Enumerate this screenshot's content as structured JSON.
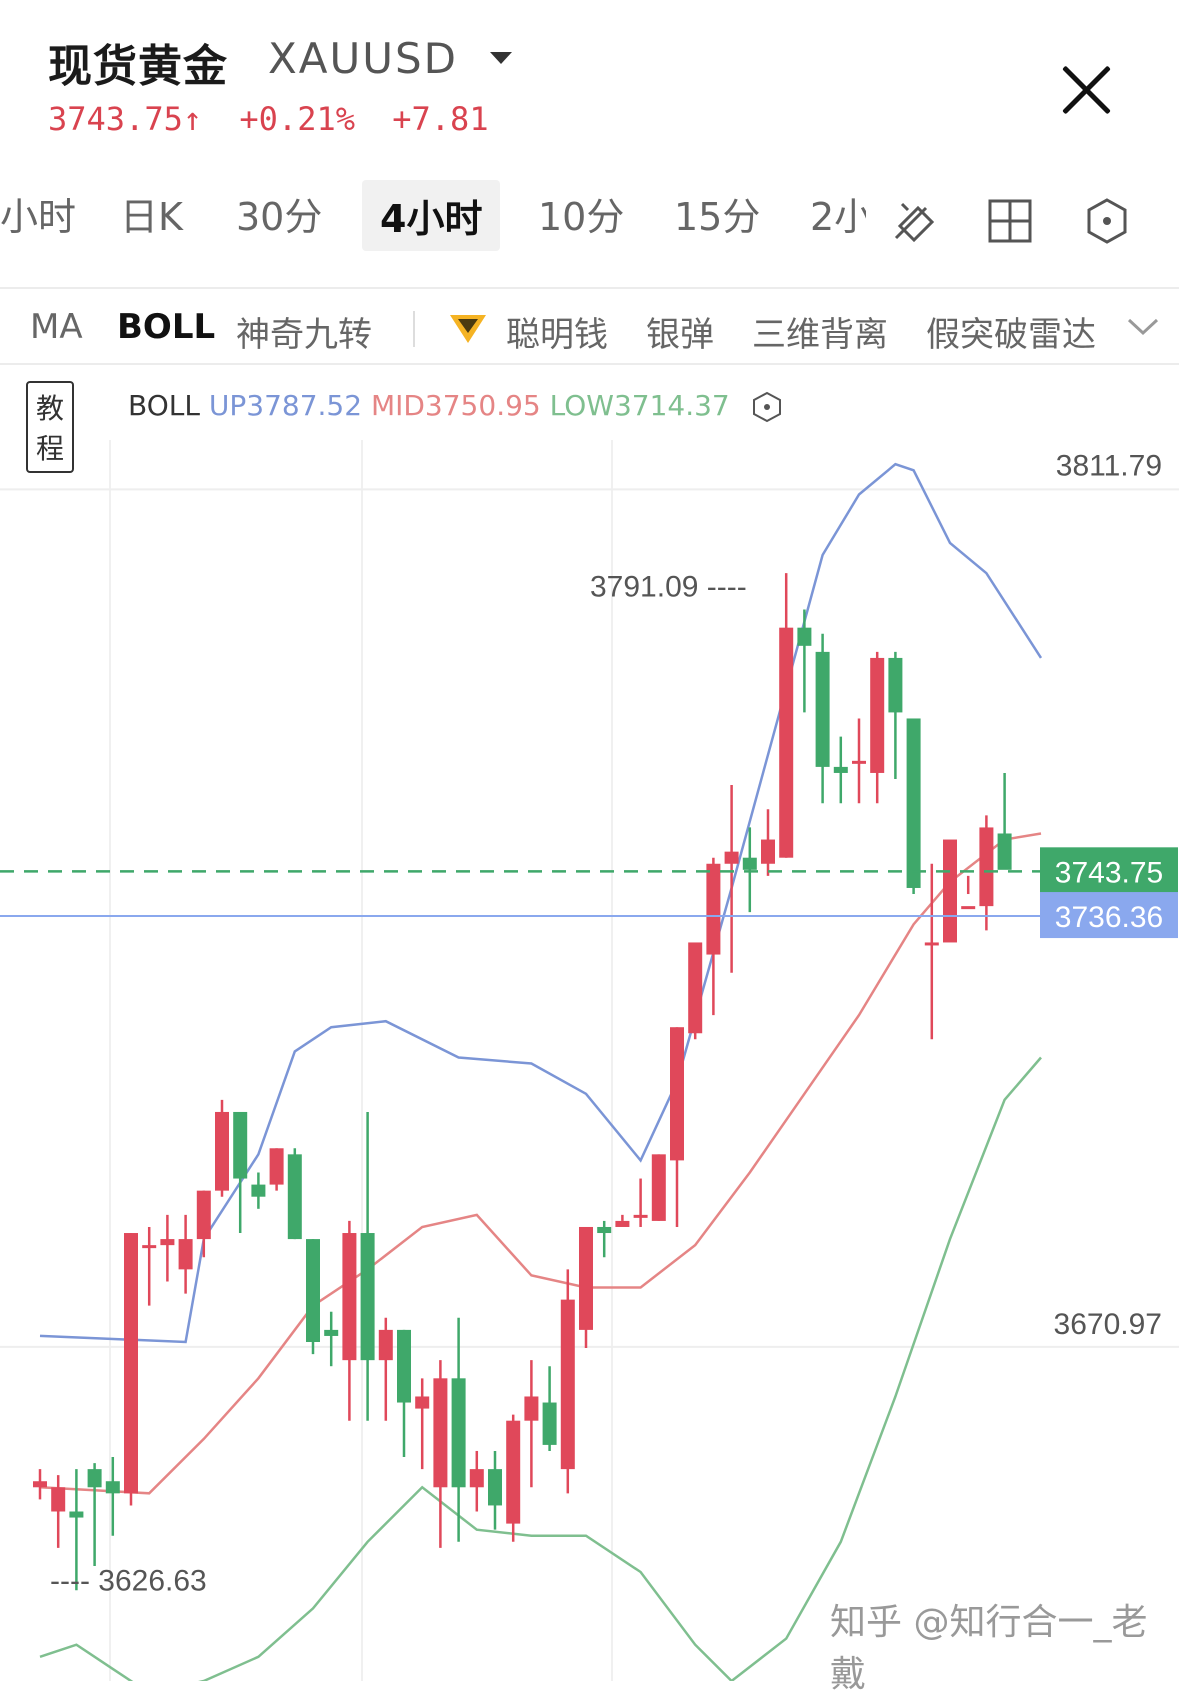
{
  "header": {
    "title": "现货黄金",
    "symbol": "XAUUSD",
    "price": "3743.75↑",
    "change_pct": "+0.21%",
    "change_abs": "+7.81"
  },
  "tabs": [
    {
      "label": "小时"
    },
    {
      "label": "日K"
    },
    {
      "label": "30分"
    },
    {
      "label": "4小时"
    },
    {
      "label": "10分"
    },
    {
      "label": "15分"
    },
    {
      "label": "2小"
    }
  ],
  "tab_active": "4小时",
  "tools": [
    {
      "icon": "drawing-tool-icon"
    },
    {
      "icon": "grid-layout-icon"
    },
    {
      "icon": "settings-hexagon-icon"
    }
  ],
  "indicators": {
    "ma": "MA",
    "boll": "BOLL",
    "items": [
      "神奇九转",
      "聪明钱",
      "银弹",
      "三维背离",
      "假突破雷达"
    ]
  },
  "legend": {
    "tutorial": "教程",
    "name": "BOLL",
    "up": "UP3787.52",
    "mid": "MID3750.95",
    "low": "LOW3714.37"
  },
  "colors": {
    "up": "#e0485a",
    "down": "#3fa86a",
    "upper_band": "#7b95d6",
    "mid_band": "#e58585",
    "lower_band": "#7fbf8f",
    "price_tag": "#3fa86a",
    "cross_tag": "#8aa8ee"
  },
  "watermark": "知乎 @知行合一_老戴",
  "chart_data": {
    "type": "candlestick",
    "ylim": [
      3610,
      3815
    ],
    "price_labels": {
      "top": "3811.79",
      "middle": "3670.97",
      "high_mark": "3791.09",
      "low_mark": "3626.63"
    },
    "current_price": "3743.75",
    "crosshair_price": "3736.36",
    "candles": [
      [
        3642,
        3643,
        3645,
        3640
      ],
      [
        3638,
        3642,
        3644,
        3632
      ],
      [
        3638,
        3637,
        3645,
        3625
      ],
      [
        3645,
        3642,
        3646,
        3629
      ],
      [
        3643,
        3641,
        3647,
        3634
      ],
      [
        3641,
        3684,
        3684,
        3639
      ],
      [
        3682,
        3682,
        3685,
        3672
      ],
      [
        3682,
        3683,
        3687,
        3676
      ],
      [
        3678,
        3683,
        3687,
        3674
      ],
      [
        3683,
        3691,
        3691,
        3680
      ],
      [
        3691,
        3704,
        3706,
        3690
      ],
      [
        3704,
        3693,
        3704,
        3684
      ],
      [
        3692,
        3690,
        3694,
        3688
      ],
      [
        3692,
        3698,
        3698,
        3691
      ],
      [
        3697,
        3683,
        3698,
        3683
      ],
      [
        3683,
        3666,
        3683,
        3664
      ],
      [
        3668,
        3667,
        3671,
        3662
      ],
      [
        3663,
        3684,
        3686,
        3653
      ],
      [
        3684,
        3663,
        3704,
        3653
      ],
      [
        3663,
        3668,
        3670,
        3653
      ],
      [
        3668,
        3656,
        3668,
        3647
      ],
      [
        3655,
        3657,
        3660,
        3645
      ],
      [
        3642,
        3660,
        3663,
        3632
      ],
      [
        3660,
        3642,
        3670,
        3633
      ],
      [
        3642,
        3645,
        3648,
        3638
      ],
      [
        3645,
        3639,
        3648,
        3635
      ],
      [
        3636,
        3653,
        3654,
        3633
      ],
      [
        3653,
        3657,
        3663,
        3642
      ],
      [
        3656,
        3649,
        3662,
        3648
      ],
      [
        3645,
        3673,
        3678,
        3641
      ],
      [
        3668,
        3685,
        3685,
        3665
      ],
      [
        3685,
        3684,
        3686,
        3680
      ],
      [
        3685,
        3686,
        3687,
        3686
      ],
      [
        3687,
        3687,
        3693,
        3685
      ],
      [
        3686,
        3697,
        3697,
        3686
      ],
      [
        3696,
        3718,
        3718,
        3685
      ],
      [
        3717,
        3732,
        3731,
        3716
      ],
      [
        3730,
        3745,
        3746,
        3720
      ],
      [
        3745,
        3747,
        3758,
        3727
      ],
      [
        3746,
        3744,
        3751,
        3737
      ],
      [
        3745,
        3749,
        3754,
        3743
      ],
      [
        3746,
        3784,
        3793,
        3746
      ],
      [
        3784,
        3781,
        3787,
        3770
      ],
      [
        3780,
        3761,
        3783,
        3755
      ],
      [
        3761,
        3760,
        3766,
        3755
      ],
      [
        3762,
        3762,
        3769,
        3755
      ],
      [
        3760,
        3779,
        3780,
        3755
      ],
      [
        3779,
        3770,
        3780,
        3759
      ],
      [
        3769,
        3741,
        3769,
        3740
      ],
      [
        3732,
        3732,
        3745,
        3716
      ],
      [
        3732,
        3749,
        3745,
        3733
      ],
      [
        3738,
        3738,
        3743,
        3740
      ],
      [
        3738,
        3751,
        3753,
        3734
      ],
      [
        3750,
        3744,
        3760,
        3745
      ]
    ],
    "upper_band": [
      [
        0,
        3667
      ],
      [
        8,
        3666
      ],
      [
        9,
        3683
      ],
      [
        12,
        3697
      ],
      [
        14,
        3714
      ],
      [
        16,
        3718
      ],
      [
        19,
        3719
      ],
      [
        23,
        3713
      ],
      [
        27,
        3712
      ],
      [
        30,
        3707
      ],
      [
        33,
        3696
      ],
      [
        35,
        3709
      ],
      [
        38,
        3741
      ],
      [
        41,
        3774
      ],
      [
        43,
        3796
      ],
      [
        45,
        3806
      ],
      [
        47,
        3811
      ],
      [
        48,
        3810
      ],
      [
        50,
        3798
      ],
      [
        52,
        3793
      ],
      [
        55,
        3779
      ]
    ],
    "mid_band": [
      [
        0,
        3642
      ],
      [
        6,
        3641
      ],
      [
        9,
        3650
      ],
      [
        12,
        3660
      ],
      [
        15,
        3672
      ],
      [
        18,
        3678
      ],
      [
        21,
        3685
      ],
      [
        24,
        3687
      ],
      [
        27,
        3677
      ],
      [
        30,
        3675
      ],
      [
        33,
        3675
      ],
      [
        36,
        3682
      ],
      [
        39,
        3694
      ],
      [
        42,
        3707
      ],
      [
        45,
        3720
      ],
      [
        48,
        3735
      ],
      [
        50,
        3742
      ],
      [
        53,
        3749
      ],
      [
        55,
        3750
      ]
    ],
    "lower_band": [
      [
        0,
        3614
      ],
      [
        2,
        3616
      ],
      [
        4,
        3612
      ],
      [
        6,
        3608
      ],
      [
        9,
        3610
      ],
      [
        12,
        3614
      ],
      [
        15,
        3622
      ],
      [
        18,
        3633
      ],
      [
        21,
        3642
      ],
      [
        24,
        3635
      ],
      [
        27,
        3634
      ],
      [
        30,
        3634
      ],
      [
        33,
        3628
      ],
      [
        36,
        3616
      ],
      [
        38,
        3610
      ],
      [
        41,
        3617
      ],
      [
        44,
        3633
      ],
      [
        47,
        3657
      ],
      [
        50,
        3683
      ],
      [
        53,
        3706
      ],
      [
        55,
        3713
      ]
    ]
  }
}
